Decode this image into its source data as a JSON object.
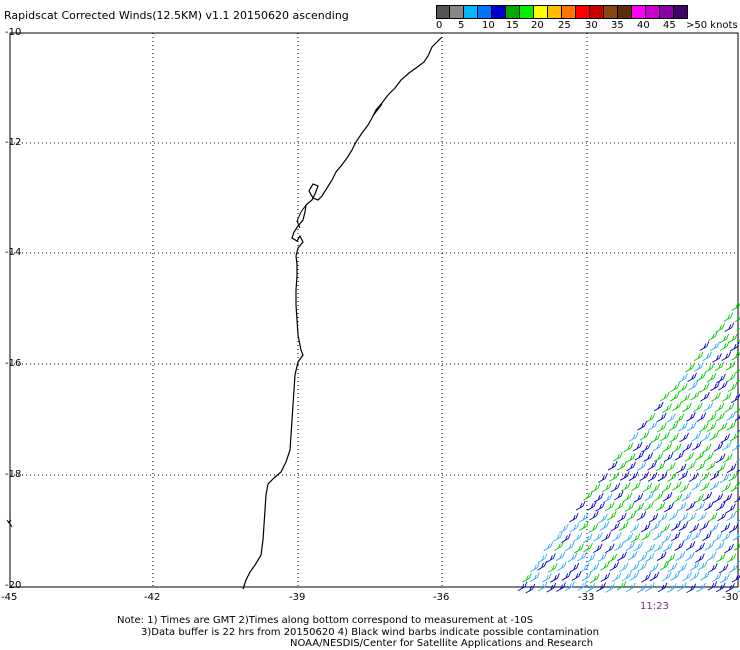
{
  "header": {
    "title": "Rapidscat Corrected Winds(12.5KM) v1.1 20150620 ascending"
  },
  "colorbar": {
    "colors": [
      "#555555",
      "#888888",
      "#00b7ff",
      "#0073ff",
      "#0000cc",
      "#00aa00",
      "#00ee00",
      "#ffff00",
      "#ffbb00",
      "#ff7700",
      "#ff0000",
      "#cc0000",
      "#8b4513",
      "#5a2d0c",
      "#ff00ff",
      "#cc00cc",
      "#8800aa",
      "#44006a"
    ],
    "tick_labels": [
      "0",
      "5",
      "10",
      "15",
      "20",
      "25",
      "30",
      "35",
      "40",
      "45",
      ">50 knots"
    ]
  },
  "axes": {
    "y_labels": [
      "-10",
      "-12",
      "-14",
      "-16",
      "-18",
      "-20"
    ],
    "x_labels": [
      "-45",
      "-42",
      "-39",
      "-36",
      "-33",
      "-30"
    ],
    "lon_range": [
      -45,
      -30
    ],
    "lat_range": [
      -20,
      -10
    ]
  },
  "notes": {
    "line1": "Note: 1) Times are GMT 2)Times along bottom correspond to measurement at -10S",
    "line2": "3)Data buffer is 22 hrs from 20150620 4) Black wind barbs indicate possible contamination",
    "line3": "NOAA/NESDIS/Center for Satellite Applications and Research"
  },
  "pass_time": "11:23",
  "wind_colors": {
    "light": "#33aaff",
    "mid": "#0000cc",
    "green": "#00cc00"
  }
}
